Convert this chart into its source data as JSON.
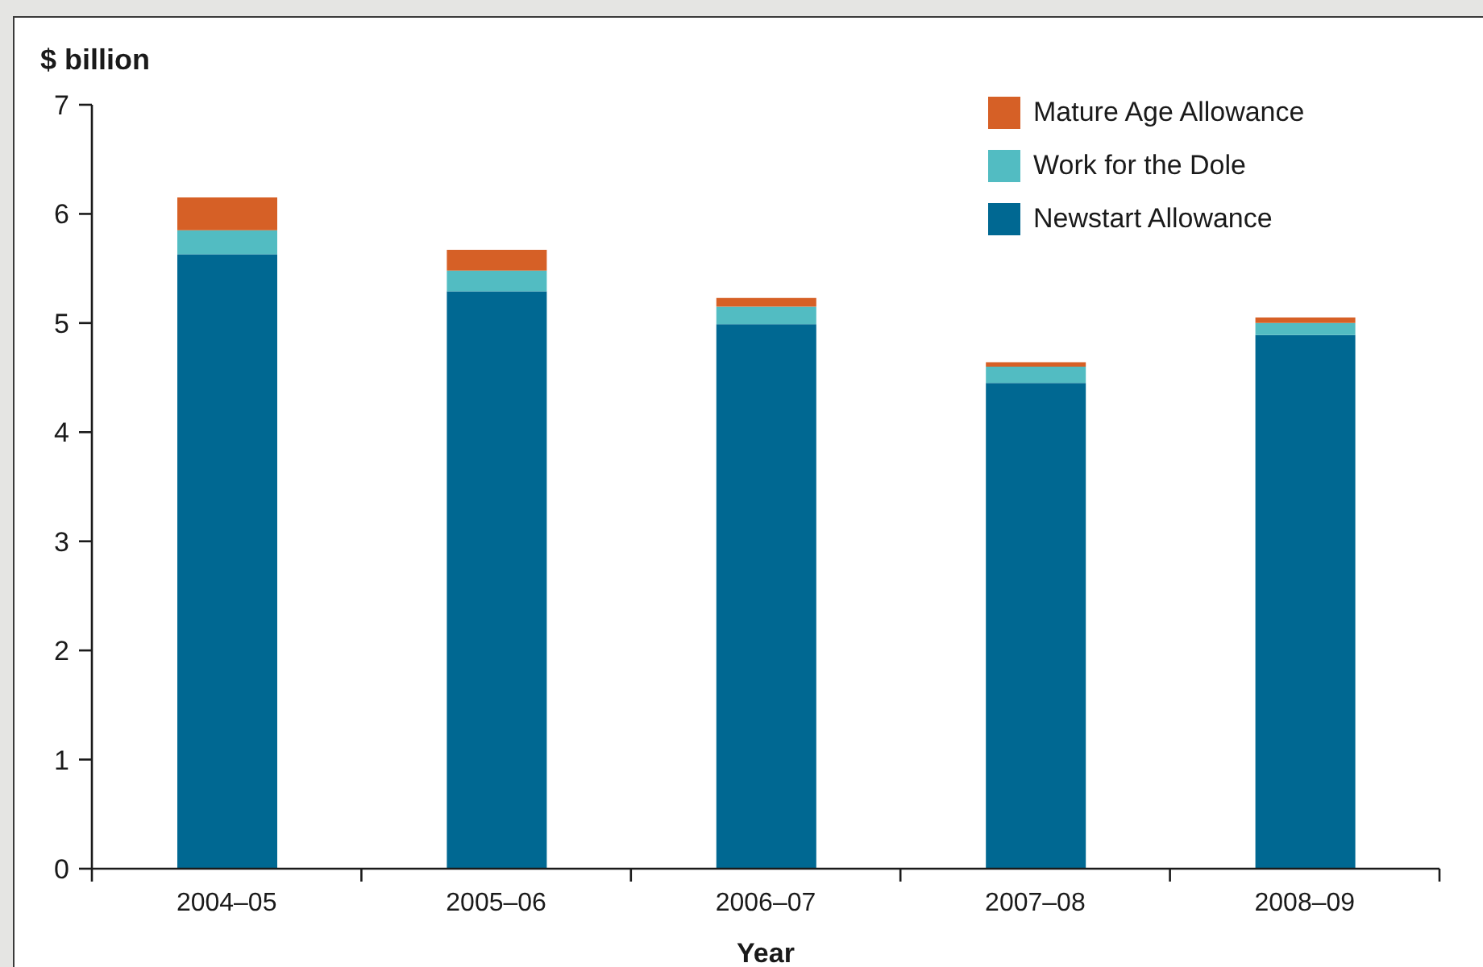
{
  "chart_data": {
    "type": "bar",
    "stacked": true,
    "ylabel": "$ billion",
    "xlabel": "Year",
    "categories": [
      "2004–05",
      "2005–06",
      "2006–07",
      "2007–08",
      "2008–09"
    ],
    "series": [
      {
        "name": "Newstart Allowance",
        "color": "#006892",
        "values": [
          5.63,
          5.29,
          4.99,
          4.45,
          4.89
        ]
      },
      {
        "name": "Work for the Dole",
        "color": "#52bcc2",
        "values": [
          0.22,
          0.19,
          0.16,
          0.15,
          0.11
        ]
      },
      {
        "name": "Mature Age Allowance",
        "color": "#d66026",
        "values": [
          0.3,
          0.19,
          0.08,
          0.04,
          0.05
        ]
      }
    ],
    "ylim": [
      0,
      7
    ],
    "yticks": [
      0,
      1,
      2,
      3,
      4,
      5,
      6,
      7
    ],
    "legend": "top right"
  }
}
